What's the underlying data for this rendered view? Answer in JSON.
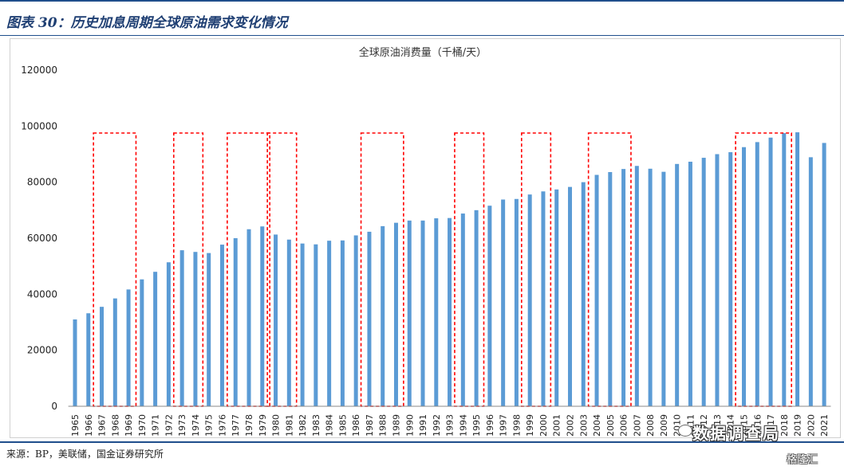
{
  "header": {
    "title": "图表 30：历史加息周期全球原油需求变化情况"
  },
  "footer": {
    "source": "来源：BP，美联储，国金证券研究所"
  },
  "watermark": {
    "text": "数据调查局",
    "logo_text": "格隆汇"
  },
  "colors": {
    "bar": "#5b9bd5",
    "highlight_box": "#ff0000",
    "rule": "#1f4e8c"
  },
  "chart_data": {
    "type": "bar",
    "title": "全球原油消费量（千桶/天）",
    "xlabel": "",
    "ylabel": "",
    "ylim": [
      0,
      120000
    ],
    "yticks": [
      0,
      20000,
      40000,
      60000,
      80000,
      100000,
      120000
    ],
    "grid": false,
    "legend": "none",
    "categories": [
      "1965",
      "1966",
      "1967",
      "1968",
      "1969",
      "1970",
      "1971",
      "1972",
      "1973",
      "1974",
      "1975",
      "1976",
      "1977",
      "1978",
      "1979",
      "1980",
      "1981",
      "1982",
      "1983",
      "1984",
      "1985",
      "1986",
      "1987",
      "1988",
      "1989",
      "1990",
      "1991",
      "1992",
      "1993",
      "1994",
      "1995",
      "1996",
      "1997",
      "1998",
      "1999",
      "2000",
      "2001",
      "2002",
      "2003",
      "2004",
      "2005",
      "2006",
      "2007",
      "2008",
      "2009",
      "2010",
      "2011",
      "2012",
      "2013",
      "2014",
      "2015",
      "2016",
      "2017",
      "2018",
      "2019",
      "2020",
      "2021"
    ],
    "values": [
      31000,
      33200,
      35500,
      38500,
      41700,
      45300,
      48000,
      51400,
      55700,
      55100,
      54700,
      57700,
      60000,
      63200,
      64200,
      61300,
      59500,
      58100,
      57800,
      59100,
      59200,
      61000,
      62300,
      64300,
      65500,
      66300,
      66300,
      67100,
      67200,
      68800,
      70000,
      71600,
      73800,
      74000,
      75600,
      76700,
      77400,
      78300,
      80000,
      82600,
      83600,
      84700,
      85800,
      84800,
      83700,
      86500,
      87300,
      88700,
      90000,
      90700,
      92500,
      94300,
      95900,
      97500,
      97800,
      88900,
      94000
    ],
    "highlight_periods": [
      [
        "1967",
        "1969"
      ],
      [
        "1973",
        "1974"
      ],
      [
        "1977",
        "1979"
      ],
      [
        "1980",
        "1981"
      ],
      [
        "1987",
        "1989"
      ],
      [
        "1994",
        "1995"
      ],
      [
        "1999",
        "2000"
      ],
      [
        "2004",
        "2006"
      ],
      [
        "2015",
        "2018"
      ]
    ]
  }
}
